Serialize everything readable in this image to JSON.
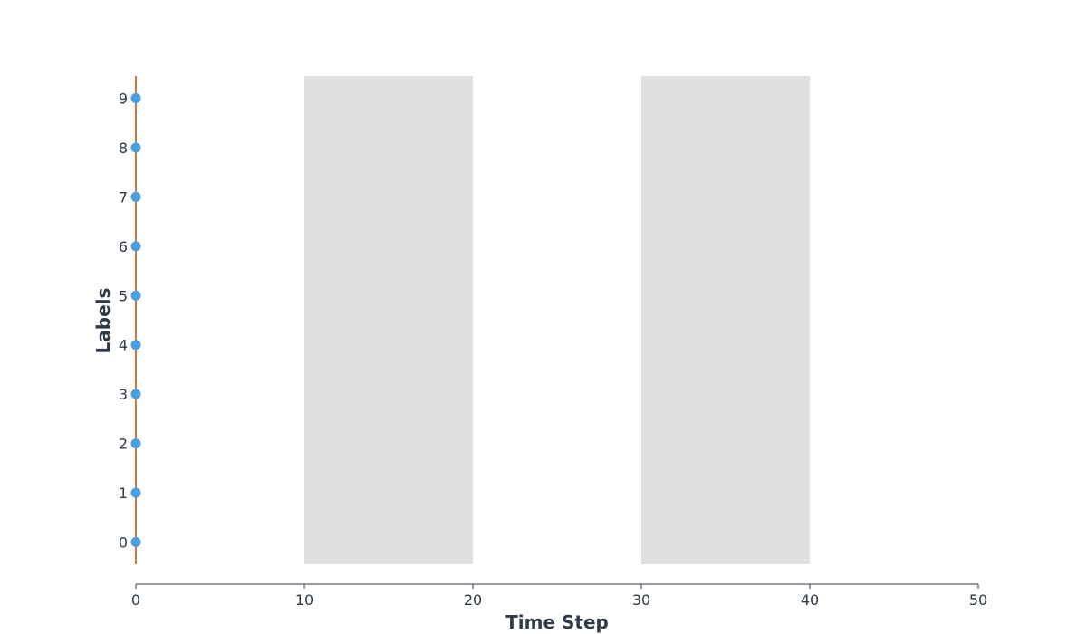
{
  "chart_data": {
    "type": "scatter",
    "title": "",
    "xlabel": "Time Step",
    "ylabel": "Labels",
    "xlim": [
      0,
      50
    ],
    "ylim": [
      -0.45,
      9.45
    ],
    "x_ticks": [
      "0",
      "10",
      "20",
      "30",
      "40",
      "50"
    ],
    "y_ticks": [
      "0",
      "1",
      "2",
      "3",
      "4",
      "5",
      "6",
      "7",
      "8",
      "9"
    ],
    "shaded_regions": [
      {
        "x_start": 10,
        "x_end": 20
      },
      {
        "x_start": 30,
        "x_end": 40
      }
    ],
    "vertical_line": {
      "x": 0
    },
    "points": [
      {
        "x": 0,
        "y": 0
      },
      {
        "x": 0,
        "y": 1
      },
      {
        "x": 0,
        "y": 2
      },
      {
        "x": 0,
        "y": 3
      },
      {
        "x": 0,
        "y": 4
      },
      {
        "x": 0,
        "y": 5
      },
      {
        "x": 0,
        "y": 6
      },
      {
        "x": 0,
        "y": 7
      },
      {
        "x": 0,
        "y": 8
      },
      {
        "x": 0,
        "y": 9
      }
    ],
    "colors": {
      "point": "#4a9fe0",
      "vertical_line": "#b84a00",
      "shade": "#e0e0e0",
      "axis": "#2e3a48"
    },
    "grid": false
  }
}
